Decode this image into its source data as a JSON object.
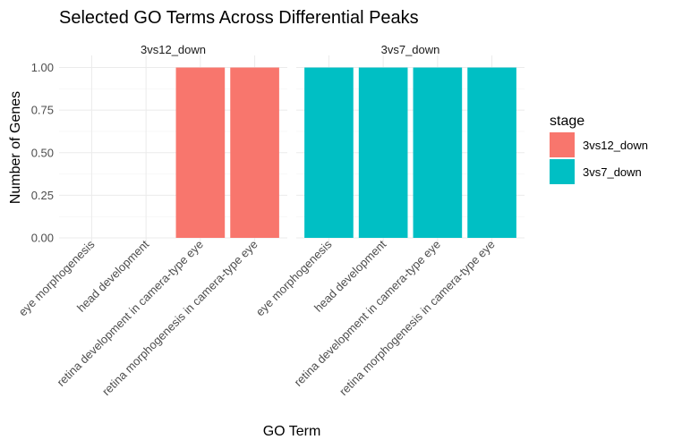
{
  "chart_data": {
    "type": "bar",
    "title": "Selected GO Terms Across Differential Peaks",
    "xlabel": "GO Term",
    "ylabel": "Number of Genes",
    "ylim": [
      0,
      1.05
    ],
    "yticks": [
      "0.00",
      "0.25",
      "0.50",
      "0.75",
      "1.00"
    ],
    "categories": [
      "eye morphogenesis",
      "head development",
      "retina development in camera-type eye",
      "retina morphogenesis in camera-type eye"
    ],
    "facets": [
      {
        "name": "3vs12_down",
        "color": "#F8766D",
        "values": [
          null,
          null,
          1,
          1
        ]
      },
      {
        "name": "3vs7_down",
        "color": "#00BFC4",
        "values": [
          1,
          1,
          1,
          1
        ]
      }
    ],
    "legend": {
      "title": "stage",
      "position": "right",
      "entries": [
        {
          "label": "3vs12_down",
          "color": "#F8766D"
        },
        {
          "label": "3vs7_down",
          "color": "#00BFC4"
        }
      ]
    },
    "grid": true
  }
}
